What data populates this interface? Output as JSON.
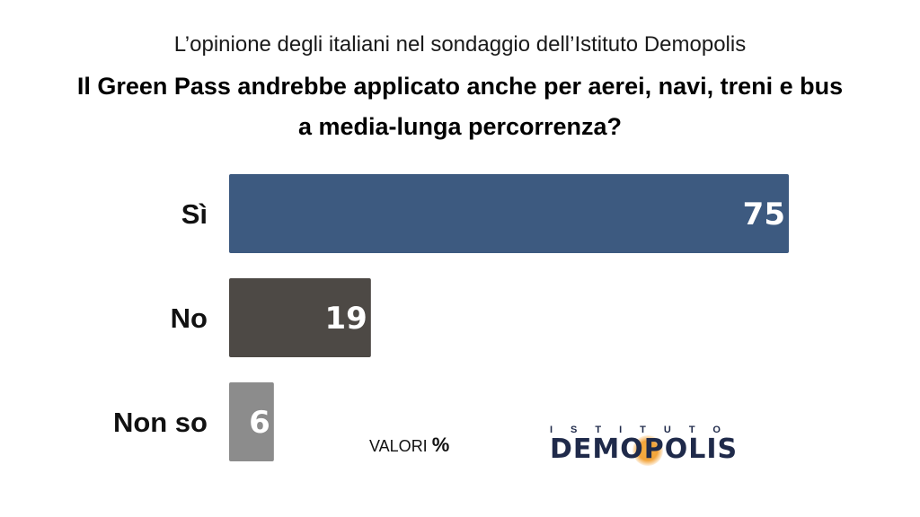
{
  "header": {
    "subtitle": "L’opinione degli italiani nel sondaggio dell’Istituto Demopolis",
    "title_line1": "Il Green Pass andrebbe applicato anche per aerei, navi, treni e bus",
    "title_line2": "a media-lunga percorrenza?"
  },
  "footer": {
    "units_text": "VALORI",
    "units_symbol": "%",
    "logo_small": "ISTITUTO",
    "logo_main": "DEMOPOLIS"
  },
  "colors": {
    "si": "#3d5a80",
    "no": "#4d4945",
    "non_so": "#8c8c8c"
  },
  "chart_data": {
    "type": "bar",
    "orientation": "horizontal",
    "categories": [
      "Sì",
      "No",
      "Non so"
    ],
    "values": [
      75,
      19,
      6
    ],
    "colors": [
      "#3d5a80",
      "#4d4945",
      "#8c8c8c"
    ],
    "xlim": [
      0,
      75
    ],
    "unit": "%",
    "grid": false,
    "legend": "none"
  }
}
